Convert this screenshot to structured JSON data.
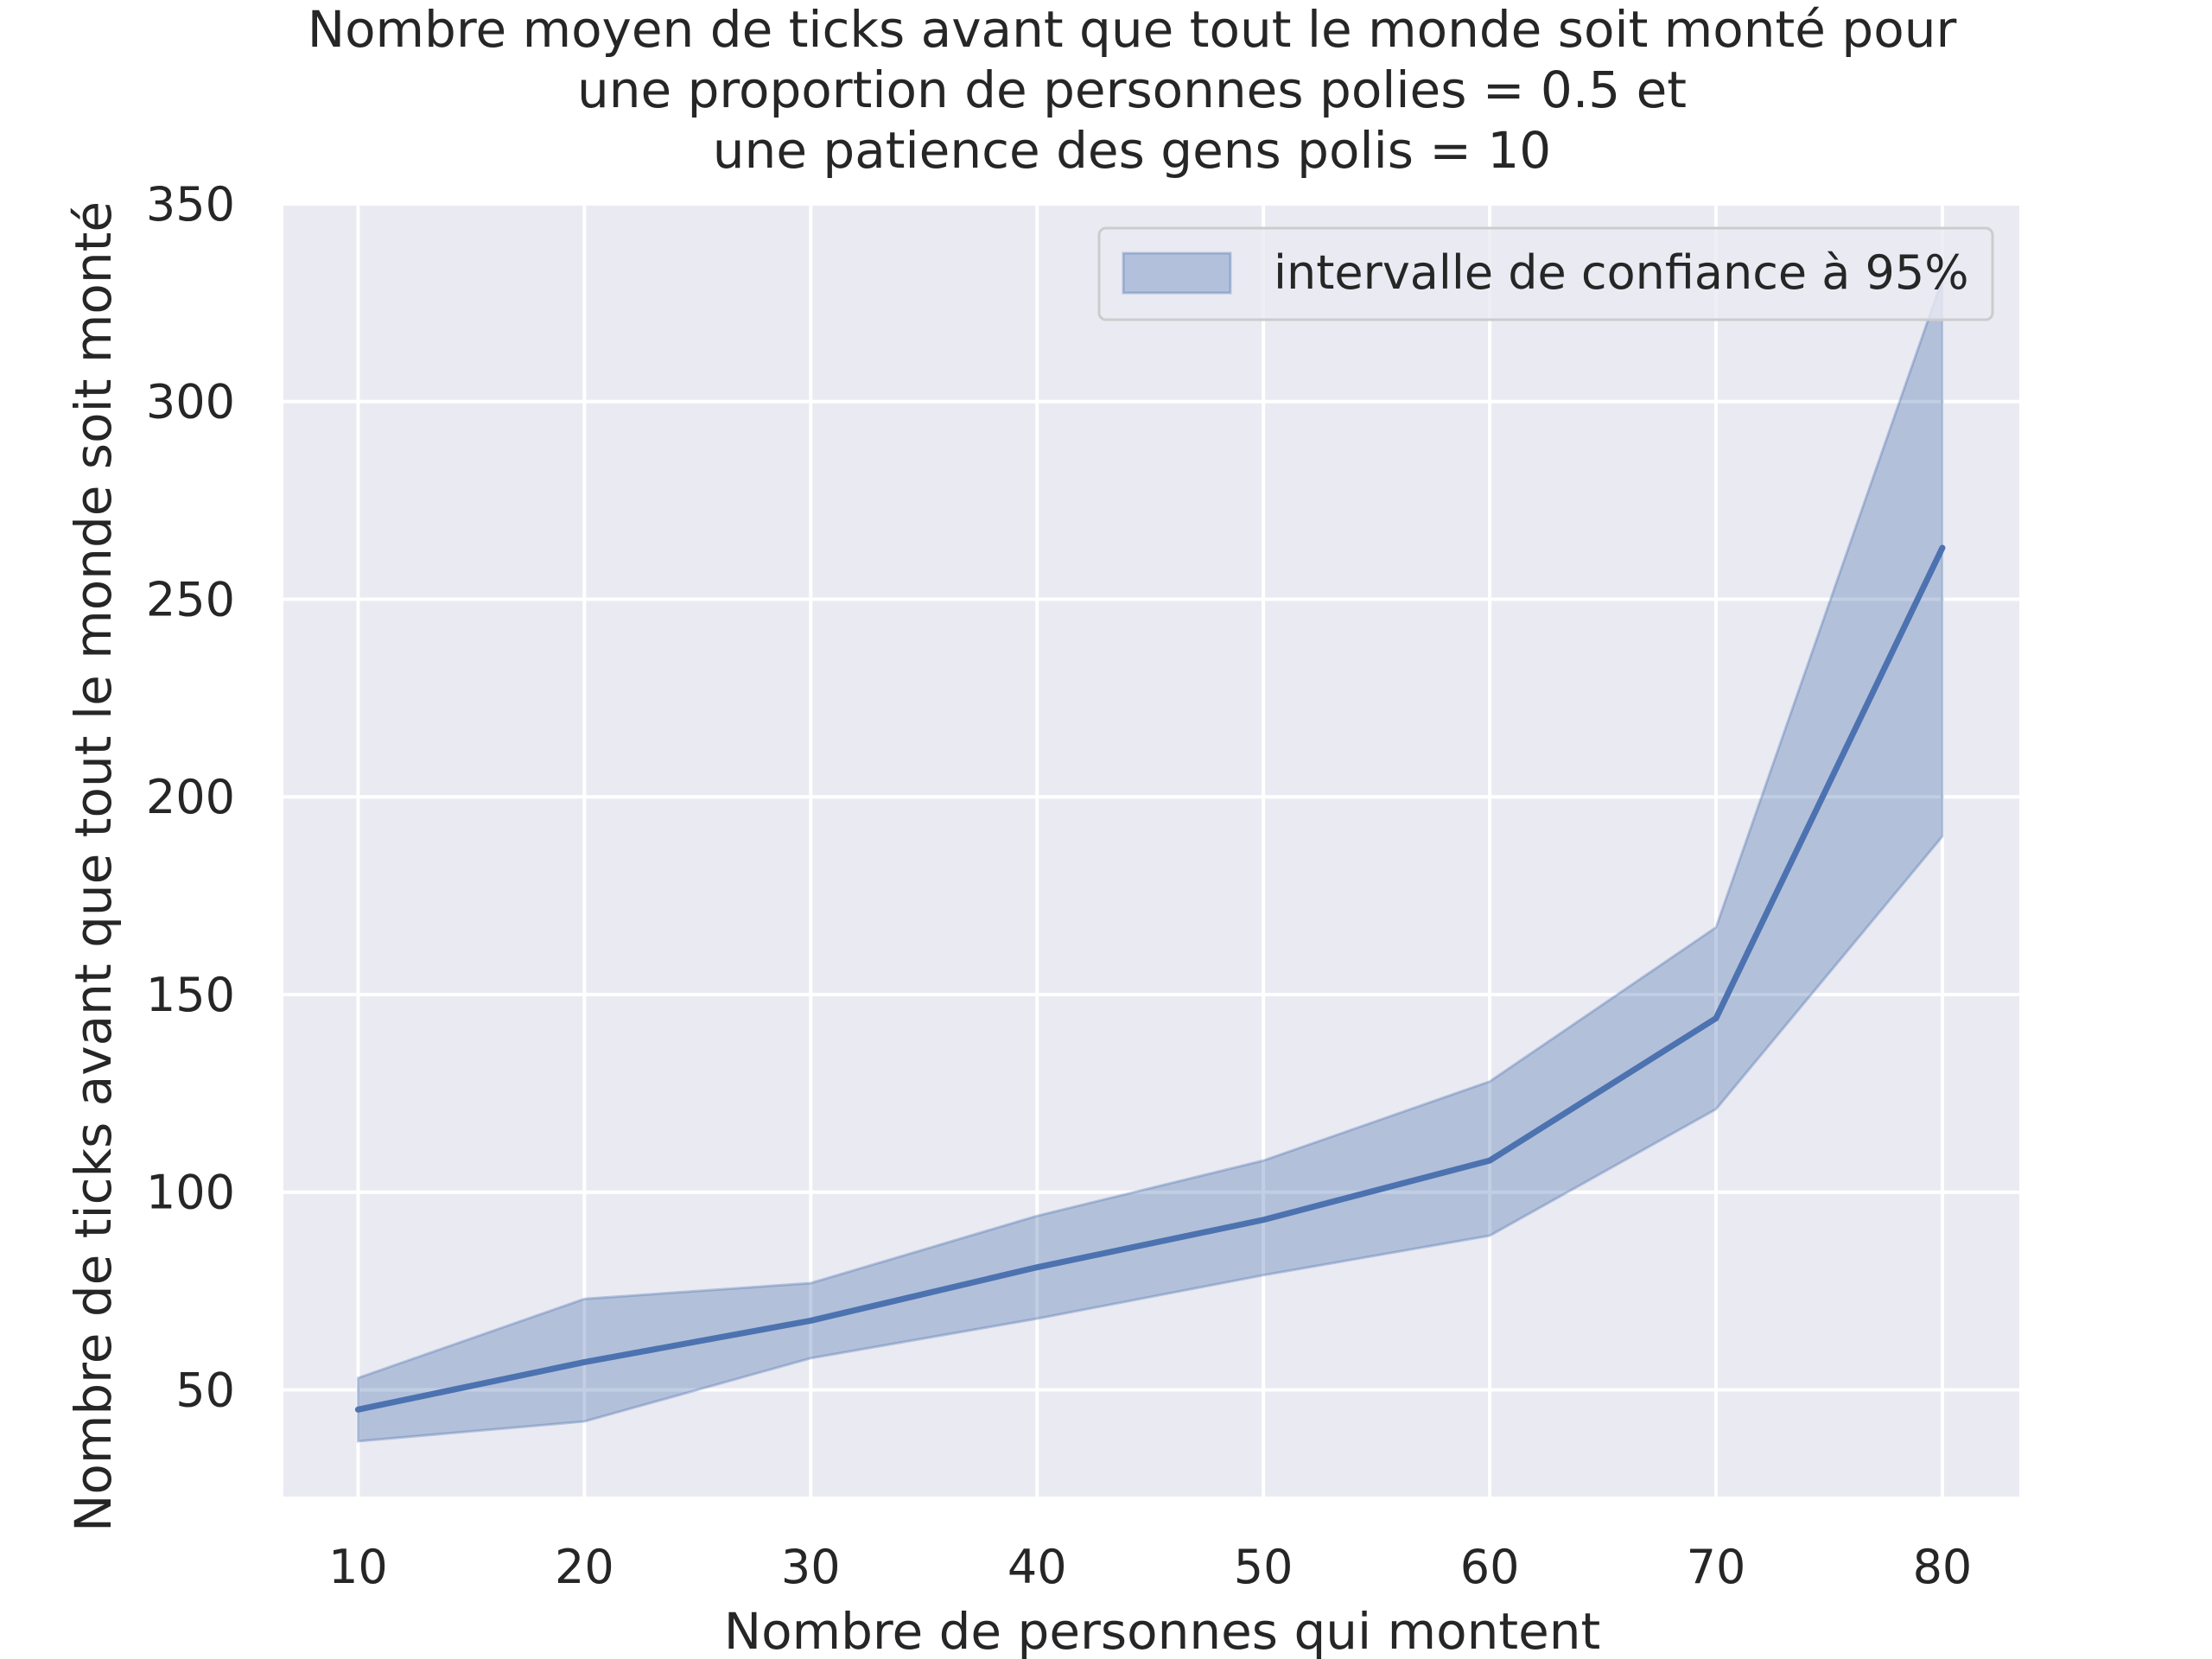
{
  "chart_data": {
    "type": "line",
    "title_lines": [
      "Nombre moyen de ticks avant que tout le monde soit monté pour",
      "une proportion de personnes polies = 0.5 et",
      "une patience des gens polis = 10"
    ],
    "xlabel": "Nombre de personnes qui montent",
    "ylabel": "Nombre de ticks avant que tout le monde soit monté",
    "x": [
      10,
      20,
      30,
      40,
      50,
      60,
      70,
      80
    ],
    "series": [
      {
        "values": [
          45,
          57,
          67.5,
          81,
          93,
          108,
          144,
          263
        ],
        "ci_low": [
          37,
          42,
          58,
          68,
          79,
          89,
          121,
          190
        ],
        "ci_high": [
          53,
          73,
          77,
          94,
          108,
          128,
          167,
          331
        ]
      }
    ],
    "xticks": [
      10,
      20,
      30,
      40,
      50,
      60,
      70,
      80
    ],
    "yticks": [
      50,
      100,
      150,
      200,
      250,
      300,
      350
    ],
    "xlim": [
      6.7,
      83.4
    ],
    "ylim": [
      23,
      350
    ],
    "grid": true,
    "legend": {
      "position": "top-right",
      "entries": [
        "intervalle de confiance à 95%"
      ]
    },
    "colors": {
      "line": "#4c72b0",
      "band": "#4c72b0",
      "background": "#eaeaf2",
      "grid": "#ffffff",
      "text": "#262626"
    }
  }
}
